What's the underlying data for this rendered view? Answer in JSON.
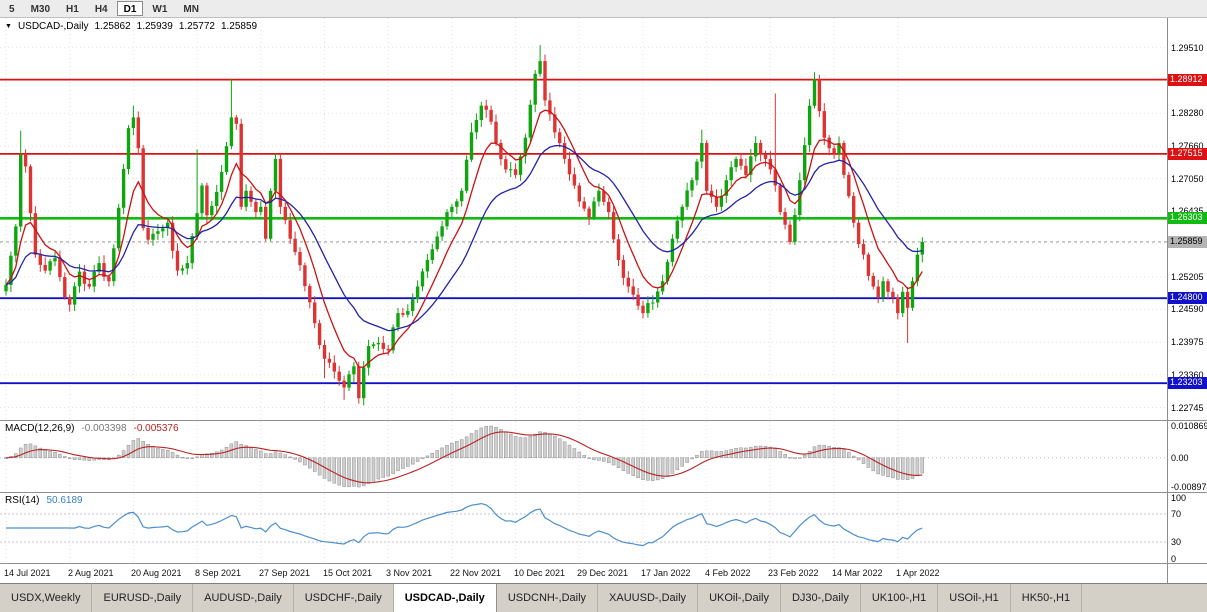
{
  "icons": {
    "collapse": "▼"
  },
  "colors": {
    "up": "#0fa50f",
    "down": "#dd3333",
    "ma_fast": "#cc1111",
    "ma_slow": "#2222aa",
    "macd_hist_fill": "#cfcfcf",
    "macd_hist_stroke": "#8f8f8f",
    "macd_signal": "#bb2222",
    "rsi_line": "#4a8fd0",
    "level_red": "#dd1111",
    "level_green": "#11bb11",
    "level_blue": "#1111cc",
    "bid_line": "#999999"
  },
  "toolbar": {
    "timeframes": [
      {
        "label": "5",
        "active": false
      },
      {
        "label": "M30",
        "active": false
      },
      {
        "label": "H1",
        "active": false
      },
      {
        "label": "H4",
        "active": false
      },
      {
        "label": "D1",
        "active": true
      },
      {
        "label": "W1",
        "active": false
      },
      {
        "label": "MN",
        "active": false
      }
    ]
  },
  "chart": {
    "symbol_title": "USDCAD-,Daily",
    "open": "1.25862",
    "high": "1.25939",
    "low": "1.25772",
    "close": "1.25859",
    "current_price": 1.25859,
    "current_price_label": "1.25859",
    "price_min": 1.2251,
    "price_max": 1.3007,
    "scale_ticks": [
      "1.29510",
      "1.28280",
      "1.27660",
      "1.27050",
      "1.26435",
      "1.25825",
      "1.25205",
      "1.24590",
      "1.23975",
      "1.23360",
      "1.22745"
    ],
    "levels": [
      {
        "price": 1.28912,
        "label": "1.28912",
        "color_key": "level_red"
      },
      {
        "price": 1.27515,
        "label": "1.27515",
        "color_key": "level_red"
      },
      {
        "price": 1.26303,
        "label": "1.26303",
        "color_key": "level_green"
      },
      {
        "price": 1.248,
        "label": "1.24800",
        "color_key": "level_blue"
      },
      {
        "price": 1.23203,
        "label": "1.23203",
        "color_key": "level_blue"
      }
    ]
  },
  "macd": {
    "label": "MACD(12,26,9)",
    "value": "-0.003398",
    "signal": "-0.005376",
    "scale_ticks": [
      {
        "pos": "max",
        "label": "0.010869"
      },
      {
        "pos": "zero",
        "label": "0.00"
      },
      {
        "pos": "min",
        "label": "-0.008974"
      }
    ]
  },
  "rsi": {
    "label": "RSI(14)",
    "value": "50.6189",
    "levels": [
      70,
      30
    ],
    "scale_ticks": [
      {
        "v": 100,
        "label": "100"
      },
      {
        "v": 70,
        "label": "70"
      },
      {
        "v": 30,
        "label": "30"
      },
      {
        "v": 0,
        "label": "0"
      }
    ]
  },
  "time_scale": {
    "label_every_bars": 13,
    "dates": [
      "14 Jul 2021",
      "2 Aug 2021",
      "20 Aug 2021",
      "8 Sep 2021",
      "27 Sep 2021",
      "15 Oct 2021",
      "3 Nov 2021",
      "22 Nov 2021",
      "10 Dec 2021",
      "29 Dec 2021",
      "17 Jan 2022",
      "4 Feb 2022",
      "23 Feb 2022",
      "14 Mar 2022",
      "1 Apr 2022"
    ]
  },
  "tabs": [
    {
      "label": "USDX,Weekly",
      "active": false
    },
    {
      "label": "EURUSD-,Daily",
      "active": false
    },
    {
      "label": "AUDUSD-,Daily",
      "active": false
    },
    {
      "label": "USDCHF-,Daily",
      "active": false
    },
    {
      "label": "USDCAD-,Daily",
      "active": true
    },
    {
      "label": "USDCNH-,Daily",
      "active": false
    },
    {
      "label": "XAUUSD-,Daily",
      "active": false
    },
    {
      "label": "UKOil-,Daily",
      "active": false
    },
    {
      "label": "DJ30-,Daily",
      "active": false
    },
    {
      "label": "UK100-,H1",
      "active": false
    },
    {
      "label": "USOil-,H1",
      "active": false
    },
    {
      "label": "HK50-,H1",
      "active": false
    }
  ],
  "chart_data": {
    "type": "candlestick",
    "symbol": "USDCAD-",
    "timeframe": "Daily",
    "bars": 188,
    "last_quote": {
      "open": 1.25862,
      "high": 1.25939,
      "low": 1.25772,
      "close": 1.25859
    },
    "wiggle": 0.0009,
    "ma_fast_period": 8,
    "ma_slow_period": 21,
    "macd_params": [
      12,
      26,
      9
    ],
    "rsi_period": 14,
    "anchors": [
      [
        0,
        1.2505
      ],
      [
        1,
        1.256
      ],
      [
        2,
        1.2615
      ],
      [
        3,
        1.275
      ],
      [
        4,
        1.2728
      ],
      [
        5,
        1.264
      ],
      [
        6,
        1.2562
      ],
      [
        8,
        1.2532
      ],
      [
        10,
        1.2556
      ],
      [
        12,
        1.2482
      ],
      [
        13,
        1.2468
      ],
      [
        15,
        1.253
      ],
      [
        17,
        1.2502
      ],
      [
        19,
        1.2546
      ],
      [
        21,
        1.2512
      ],
      [
        23,
        1.265
      ],
      [
        25,
        1.28
      ],
      [
        26,
        1.282
      ],
      [
        27,
        1.2762
      ],
      [
        28,
        1.2612
      ],
      [
        29,
        1.259
      ],
      [
        31,
        1.2606
      ],
      [
        33,
        1.2622
      ],
      [
        35,
        1.2532
      ],
      [
        37,
        1.2546
      ],
      [
        39,
        1.264
      ],
      [
        40,
        1.2692
      ],
      [
        41,
        1.2636
      ],
      [
        43,
        1.268
      ],
      [
        45,
        1.2766
      ],
      [
        46,
        1.282
      ],
      [
        47,
        1.2808
      ],
      [
        48,
        1.2652
      ],
      [
        49,
        1.2682
      ],
      [
        51,
        1.2642
      ],
      [
        52,
        1.2652
      ],
      [
        53,
        1.2592
      ],
      [
        54,
        1.2682
      ],
      [
        55,
        1.2742
      ],
      [
        56,
        1.2652
      ],
      [
        58,
        1.2592
      ],
      [
        60,
        1.2542
      ],
      [
        62,
        1.2472
      ],
      [
        64,
        1.2392
      ],
      [
        65,
        1.2366
      ],
      [
        67,
        1.2342
      ],
      [
        69,
        1.2312
      ],
      [
        71,
        1.2352
      ],
      [
        72,
        1.2292
      ],
      [
        74,
        1.239
      ],
      [
        76,
        1.2396
      ],
      [
        78,
        1.2382
      ],
      [
        80,
        1.2452
      ],
      [
        82,
        1.2456
      ],
      [
        84,
        1.2502
      ],
      [
        86,
        1.2552
      ],
      [
        88,
        1.2596
      ],
      [
        90,
        1.2642
      ],
      [
        91,
        1.2652
      ],
      [
        93,
        1.2682
      ],
      [
        95,
        1.2792
      ],
      [
        97,
        1.2842
      ],
      [
        99,
        1.2812
      ],
      [
        100,
        1.2772
      ],
      [
        102,
        1.2722
      ],
      [
        104,
        1.2712
      ],
      [
        106,
        1.2782
      ],
      [
        108,
        1.2902
      ],
      [
        109,
        1.2926
      ],
      [
        110,
        1.2852
      ],
      [
        112,
        1.2792
      ],
      [
        114,
        1.2742
      ],
      [
        116,
        1.2692
      ],
      [
        117,
        1.2662
      ],
      [
        119,
        1.2632
      ],
      [
        121,
        1.2682
      ],
      [
        123,
        1.2642
      ],
      [
        125,
        1.2552
      ],
      [
        127,
        1.2502
      ],
      [
        129,
        1.2466
      ],
      [
        130,
        1.2452
      ],
      [
        132,
        1.2472
      ],
      [
        134,
        1.2512
      ],
      [
        136,
        1.2592
      ],
      [
        138,
        1.2652
      ],
      [
        140,
        1.2702
      ],
      [
        142,
        1.2772
      ],
      [
        143,
        1.2682
      ],
      [
        145,
        1.2652
      ],
      [
        147,
        1.2702
      ],
      [
        149,
        1.2742
      ],
      [
        151,
        1.2712
      ],
      [
        153,
        1.2772
      ],
      [
        155,
        1.2742
      ],
      [
        156,
        1.2722
      ],
      [
        157,
        1.2692
      ],
      [
        158,
        1.2642
      ],
      [
        160,
        1.2586
      ],
      [
        162,
        1.2702
      ],
      [
        164,
        1.2842
      ],
      [
        165,
        1.2892
      ],
      [
        166,
        1.2832
      ],
      [
        167,
        1.2782
      ],
      [
        168,
        1.2762
      ],
      [
        169,
        1.2752
      ],
      [
        170,
        1.2772
      ],
      [
        171,
        1.2712
      ],
      [
        172,
        1.2672
      ],
      [
        173,
        1.2622
      ],
      [
        174,
        1.2582
      ],
      [
        175,
        1.2562
      ],
      [
        176,
        1.2522
      ],
      [
        177,
        1.2502
      ],
      [
        178,
        1.2482
      ],
      [
        179,
        1.2512
      ],
      [
        180,
        1.2492
      ],
      [
        181,
        1.2482
      ],
      [
        182,
        1.2452
      ],
      [
        183,
        1.2492
      ],
      [
        184,
        1.2462
      ],
      [
        185,
        1.2512
      ],
      [
        186,
        1.2562
      ],
      [
        187,
        1.25859
      ]
    ],
    "wicks": [
      [
        3,
        "h",
        1.2795
      ],
      [
        26,
        "h",
        1.2842
      ],
      [
        39,
        "h",
        1.276
      ],
      [
        46,
        "h",
        1.2893
      ],
      [
        65,
        "l",
        1.233
      ],
      [
        69,
        "l",
        1.2289
      ],
      [
        72,
        "l",
        1.2286
      ],
      [
        95,
        "h",
        1.281
      ],
      [
        109,
        "h",
        1.2956
      ],
      [
        130,
        "l",
        1.245
      ],
      [
        142,
        "h",
        1.2797
      ],
      [
        157,
        "h",
        1.2865
      ],
      [
        165,
        "h",
        1.2905
      ],
      [
        184,
        "l",
        1.2396
      ]
    ]
  }
}
